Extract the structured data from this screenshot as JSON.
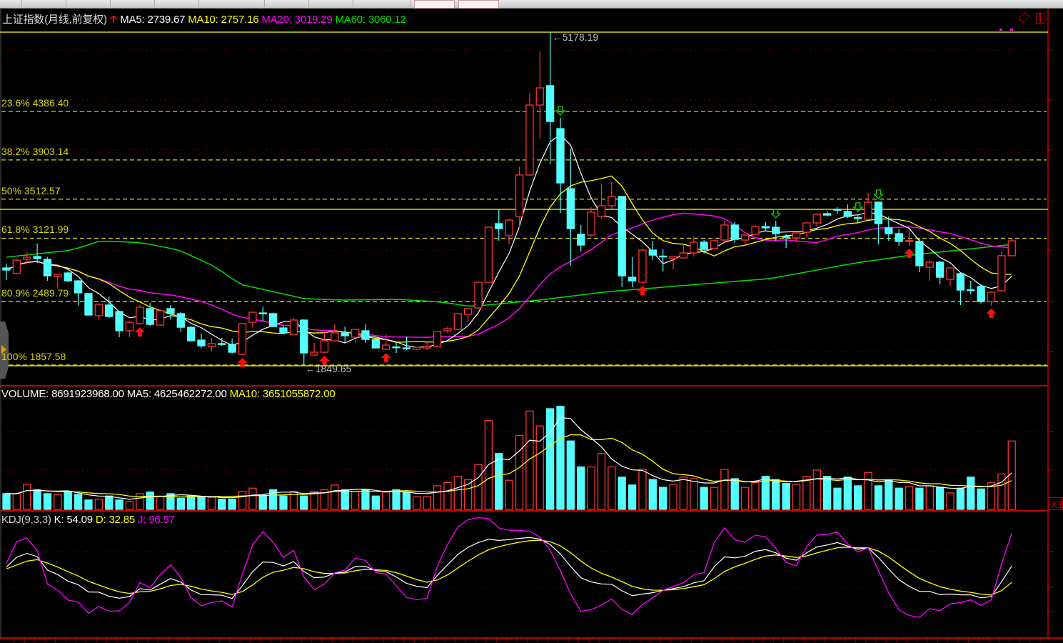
{
  "header": {
    "title": "上证指数(月线,前复权)",
    "ma5": "MA5: 2739.67",
    "ma10": "MA10: 2757.16",
    "ma20": "MA20: 3019.29",
    "ma60": "MA60: 3060.12"
  },
  "volume_header": {
    "volume": "VOLUME: 8691923968.00",
    "ma5": "MA5: 4625462272.00",
    "ma10": "MA10: 3651055872.00"
  },
  "kdj_header": {
    "name": "KDJ(9,3,3)",
    "k": "K: 54.09",
    "d": "D: 32.85",
    "j": "J: 96.57"
  },
  "scale_button": "X1",
  "colors": {
    "up": "#ff3232",
    "down": "#54ffff",
    "ma5": "#ffffff",
    "ma10": "#ffff00",
    "ma20": "#ff00ff",
    "ma60": "#00e000",
    "fib": "#d8d800",
    "grid": "#a00000"
  },
  "chart_data": {
    "type": "candlestick",
    "period": "monthly",
    "price_range": [
      1849.65,
      5178.19
    ],
    "high_label": "5178.19",
    "low_label": "1849.65",
    "horizontal_line": 3411,
    "fibonacci": [
      {
        "label": "23.6% 4386.40",
        "price": 4386.4
      },
      {
        "label": "38.2% 3903.14",
        "price": 3903.14
      },
      {
        "label": "50% 3512.57",
        "price": 3512.57
      },
      {
        "label": "61.8% 3121.99",
        "price": 3121.99
      },
      {
        "label": "80.9% 2489.79",
        "price": 2489.79
      },
      {
        "label": "100% 1857.58",
        "price": 1857.58
      }
    ],
    "ohlc": [
      [
        2826,
        2869,
        2705,
        2805
      ],
      [
        2769,
        2919,
        2760,
        2904
      ],
      [
        2912,
        2983,
        2862,
        2933
      ],
      [
        2940,
        3069,
        2876,
        2919
      ],
      [
        2912,
        2933,
        2697,
        2747
      ],
      [
        2740,
        2765,
        2619,
        2762
      ],
      [
        2776,
        2790,
        2683,
        2697
      ],
      [
        2697,
        2705,
        2449,
        2577
      ],
      [
        2570,
        2577,
        2350,
        2356
      ],
      [
        2349,
        2470,
        2313,
        2463
      ],
      [
        2456,
        2541,
        2327,
        2342
      ],
      [
        2391,
        2400,
        2135,
        2199
      ],
      [
        2199,
        2298,
        2135,
        2284
      ],
      [
        2270,
        2456,
        2262,
        2434
      ],
      [
        2420,
        2477,
        2249,
        2263
      ],
      [
        2256,
        2413,
        2249,
        2399
      ],
      [
        2420,
        2456,
        2313,
        2370
      ],
      [
        2370,
        2384,
        2185,
        2234
      ],
      [
        2234,
        2242,
        2092,
        2099
      ],
      [
        2106,
        2170,
        2028,
        2049
      ],
      [
        2042,
        2128,
        1992,
        2071
      ],
      [
        2071,
        2128,
        2049,
        2064
      ],
      [
        2064,
        2121,
        1971,
        1985
      ],
      [
        1964,
        2275,
        1957,
        2270
      ],
      [
        2284,
        2390,
        2234,
        2384
      ],
      [
        2377,
        2441,
        2291,
        2372
      ],
      [
        2370,
        2380,
        2235,
        2242
      ],
      [
        2227,
        2249,
        2163,
        2178
      ],
      [
        2163,
        2327,
        2156,
        2306
      ],
      [
        2306,
        2313,
        1849.65,
        1978
      ],
      [
        1957,
        2078,
        1950,
        1985
      ],
      [
        1985,
        2185,
        1978,
        2099
      ],
      [
        2099,
        2263,
        2092,
        2178
      ],
      [
        2178,
        2242,
        2085,
        2149
      ],
      [
        2135,
        2220,
        2078,
        2213
      ],
      [
        2199,
        2263,
        2078,
        2113
      ],
      [
        2113,
        2135,
        2021,
        2028
      ],
      [
        2014,
        2163,
        2006,
        2056
      ],
      [
        2038,
        2078,
        1978,
        2032
      ],
      [
        2028,
        2142,
        2006,
        2022
      ],
      [
        2014,
        2042,
        2006,
        2035
      ],
      [
        2028,
        2085,
        2006,
        2042
      ],
      [
        2042,
        2196,
        2035,
        2192
      ],
      [
        2199,
        2242,
        2178,
        2220
      ],
      [
        2213,
        2378,
        2206,
        2370
      ],
      [
        2363,
        2425,
        2284,
        2420
      ],
      [
        2427,
        2690,
        2420,
        2683
      ],
      [
        2683,
        3240,
        2676,
        3232
      ],
      [
        3268,
        3411,
        3097,
        3218
      ],
      [
        3147,
        3318,
        3062,
        3303
      ],
      [
        3339,
        3838,
        3218,
        3753
      ],
      [
        3753,
        4572,
        3745,
        4451
      ],
      [
        4451,
        4986,
        4116,
        4622
      ],
      [
        4644,
        5178.19,
        3860,
        4287
      ],
      [
        4216,
        4323,
        3375,
        3674
      ],
      [
        3617,
        4016,
        2848,
        3218
      ],
      [
        3161,
        3254,
        2990,
        3054
      ],
      [
        3154,
        3432,
        3140,
        3382
      ],
      [
        3339,
        3667,
        3311,
        3446
      ],
      [
        3446,
        3681,
        3418,
        3539
      ],
      [
        3539,
        3546,
        2634,
        2747
      ],
      [
        2733,
        2933,
        2634,
        2697
      ],
      [
        2683,
        3019,
        2676,
        3004
      ],
      [
        3004,
        3097,
        2905,
        2954
      ],
      [
        2944,
        3011,
        2790,
        2940
      ],
      [
        2919,
        2945,
        2812,
        2940
      ],
      [
        2926,
        3054,
        2920,
        2976
      ],
      [
        2976,
        3140,
        2940,
        3083
      ],
      [
        3083,
        3104,
        2969,
        3011
      ],
      [
        3019,
        3104,
        3011,
        3097
      ],
      [
        3104,
        3296,
        3097,
        3254
      ],
      [
        3254,
        3282,
        3076,
        3111
      ],
      [
        3104,
        3160,
        3054,
        3154
      ],
      [
        3161,
        3254,
        3154,
        3239
      ],
      [
        3239,
        3282,
        3197,
        3225
      ],
      [
        3232,
        3296,
        3097,
        3168
      ],
      [
        3140,
        3161,
        3026,
        3136
      ],
      [
        3125,
        3180,
        3083,
        3175
      ],
      [
        3182,
        3280,
        3133,
        3275
      ],
      [
        3275,
        3375,
        3239,
        3361
      ],
      [
        3368,
        3396,
        3339,
        3353
      ],
      [
        3410,
        3432,
        3368,
        3403
      ],
      [
        3389,
        3460,
        3325,
        3339
      ],
      [
        3328,
        3361,
        3268,
        3324
      ],
      [
        3311,
        3574,
        3305,
        3482
      ],
      [
        3482,
        3489,
        3062,
        3268
      ],
      [
        3225,
        3339,
        3097,
        3168
      ],
      [
        3168,
        3211,
        3047,
        3090
      ],
      [
        3094,
        3218,
        3047,
        3099
      ],
      [
        3090,
        3125,
        2783,
        2848
      ],
      [
        2833,
        2905,
        2697,
        2883
      ],
      [
        2883,
        2897,
        2662,
        2733
      ],
      [
        2712,
        2830,
        2648,
        2826
      ],
      [
        2769,
        2776,
        2456,
        2605
      ],
      [
        2608,
        2697,
        2563,
        2603
      ],
      [
        2641,
        2662,
        2470,
        2491
      ],
      [
        2491,
        2590,
        2449,
        2584
      ],
      [
        2598,
        2990,
        2590,
        2948
      ],
      [
        2948,
        3118,
        2940,
        3097
      ]
    ],
    "volume": [
      2000000000.0,
      2000000000.0,
      3200000000.0,
      2500000000.0,
      2000000000.0,
      1900000000.0,
      2200000000.0,
      1900000000.0,
      1200000000.0,
      1300000000.0,
      1700000000.0,
      1200000000.0,
      1000000000.0,
      2000000000.0,
      2200000000.0,
      1700000000.0,
      2000000000.0,
      1400000000.0,
      1700000000.0,
      1600000000.0,
      1500000000.0,
      1300000000.0,
      1300000000.0,
      2300000000.0,
      2700000000.0,
      1800000000.0,
      2500000000.0,
      1700000000.0,
      2300000000.0,
      1700000000.0,
      2300000000.0,
      2500000000.0,
      3100000000.0,
      2500000000.0,
      2300000000.0,
      2500000000.0,
      1700000000.0,
      2200000000.0,
      2500000000.0,
      2200000000.0,
      1600000000.0,
      1600000000.0,
      3000000000.0,
      3400000000.0,
      4200000000.0,
      3800000000.0,
      5700000000.0,
      11300000000.0,
      7100000000.0,
      3700000000.0,
      9400000000.0,
      12500000000.0,
      10600000000.0,
      12800000000.0,
      13100000000.0,
      8700000000.0,
      5400000000.0,
      5400000000.0,
      7100000000.0,
      5400000000.0,
      4100000000.0,
      3100000000.0,
      5100000000.0,
      3800000000.0,
      2800000000.0,
      3200000000.0,
      4100000000.0,
      3900000000.0,
      2800000000.0,
      2800000000.0,
      5100000000.0,
      3900000000.0,
      2800000000.0,
      3400000000.0,
      4200000000.0,
      3800000000.0,
      3300000000.0,
      3200000000.0,
      4200000000.0,
      5000000000.0,
      4200000000.0,
      2700000000.0,
      4100000000.0,
      3000000000.0,
      4700000000.0,
      3000000000.0,
      3700000000.0,
      2700000000.0,
      2900000000.0,
      2700000000.0,
      3000000000.0,
      2800000000.0,
      2100000000.0,
      2700000000.0,
      4100000000.0,
      2600000000.0,
      3400000000.0,
      4500000000.0,
      8691923968
    ],
    "ma60_points": [
      [
        0,
        2933
      ],
      [
        6.4,
        3004
      ],
      [
        9.2,
        3097
      ],
      [
        13.3,
        3076
      ],
      [
        16.8,
        3004
      ],
      [
        20.3,
        2840
      ],
      [
        22.8,
        2662
      ],
      [
        29,
        2520
      ],
      [
        32.8,
        2505
      ],
      [
        38.3,
        2513
      ],
      [
        42.5,
        2484
      ],
      [
        45.3,
        2441
      ],
      [
        51.9,
        2505
      ],
      [
        58.8,
        2591
      ],
      [
        74.4,
        2719
      ],
      [
        82.8,
        2876
      ],
      [
        88.3,
        2955
      ],
      [
        98,
        3060.12
      ]
    ],
    "buy_signals": [
      13,
      23,
      31,
      37,
      62,
      88,
      96
    ],
    "sell_signals": [
      54,
      75,
      83,
      85
    ],
    "kdj_params": [
      9,
      3,
      3
    ]
  }
}
